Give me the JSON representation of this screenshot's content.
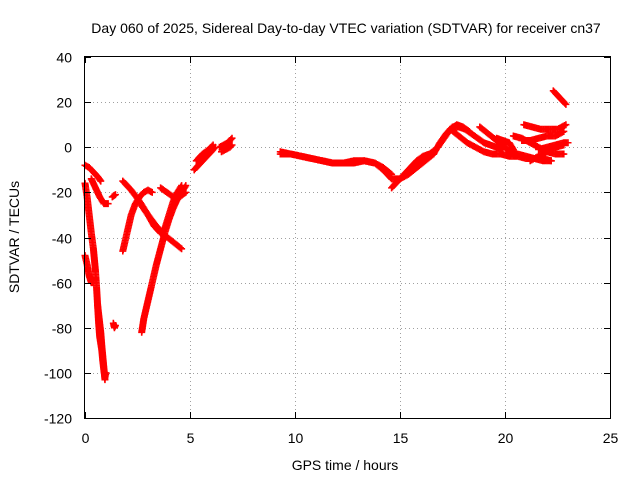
{
  "chart_data": {
    "type": "scatter",
    "title": "Day 060 of 2025, Sidereal Day-to-day VTEC variation (SDTVAR) for receiver cn37",
    "xlabel": "GPS time / hours",
    "ylabel": "SDTVAR / TECUs",
    "xlim": [
      0,
      25
    ],
    "ylim": [
      -120,
      40
    ],
    "xticks": [
      0,
      5,
      10,
      15,
      20,
      25
    ],
    "yticks": [
      -120,
      -100,
      -80,
      -60,
      -40,
      -20,
      0,
      20,
      40
    ],
    "grid": true,
    "legend": "none",
    "marker": "plus",
    "color": "#ff0000",
    "series": [
      {
        "points": [
          [
            0.0,
            -8
          ],
          [
            0.2,
            -9
          ],
          [
            0.4,
            -11
          ],
          [
            0.6,
            -13
          ],
          [
            0.75,
            -15
          ]
        ]
      },
      {
        "points": [
          [
            0.0,
            -16
          ],
          [
            0.1,
            -22
          ],
          [
            0.2,
            -30
          ],
          [
            0.3,
            -38
          ],
          [
            0.4,
            -45
          ],
          [
            0.5,
            -55
          ],
          [
            0.55,
            -62
          ],
          [
            0.6,
            -70
          ],
          [
            0.65,
            -78
          ],
          [
            0.7,
            -84
          ],
          [
            0.8,
            -90
          ],
          [
            0.85,
            -95
          ],
          [
            0.9,
            -99
          ],
          [
            0.95,
            -102
          ],
          [
            1.0,
            -100
          ]
        ]
      },
      {
        "points": [
          [
            0.0,
            -48
          ],
          [
            0.1,
            -52
          ],
          [
            0.2,
            -57
          ],
          [
            0.3,
            -60
          ],
          [
            0.4,
            -60
          ]
        ]
      },
      {
        "points": [
          [
            0.3,
            -14
          ],
          [
            0.5,
            -18
          ],
          [
            0.7,
            -22
          ],
          [
            0.9,
            -25
          ],
          [
            1.1,
            -25
          ]
        ]
      },
      {
        "points": [
          [
            0.6,
            -70
          ],
          [
            0.65,
            -74
          ],
          [
            0.7,
            -78
          ],
          [
            0.75,
            -82
          ],
          [
            0.8,
            -88
          ],
          [
            0.85,
            -93
          ],
          [
            0.9,
            -98
          ],
          [
            0.95,
            -103
          ]
        ]
      },
      {
        "points": [
          [
            1.3,
            -22
          ],
          [
            1.45,
            -21
          ]
        ]
      },
      {
        "points": [
          [
            1.35,
            -78
          ],
          [
            1.4,
            -80
          ],
          [
            1.45,
            -79
          ]
        ]
      },
      {
        "points": [
          [
            1.8,
            -46
          ],
          [
            2.0,
            -38
          ],
          [
            2.2,
            -30
          ],
          [
            2.4,
            -25
          ],
          [
            2.6,
            -22
          ],
          [
            2.8,
            -20
          ],
          [
            3.0,
            -19
          ],
          [
            3.2,
            -20
          ]
        ]
      },
      {
        "points": [
          [
            1.8,
            -15
          ],
          [
            2.2,
            -19
          ],
          [
            2.6,
            -24
          ],
          [
            3.0,
            -30
          ],
          [
            3.4,
            -35
          ],
          [
            3.8,
            -39
          ],
          [
            4.2,
            -42
          ],
          [
            4.6,
            -45
          ]
        ]
      },
      {
        "points": [
          [
            2.7,
            -82
          ],
          [
            2.8,
            -76
          ],
          [
            3.0,
            -68
          ],
          [
            3.2,
            -60
          ],
          [
            3.4,
            -52
          ],
          [
            3.6,
            -45
          ],
          [
            3.8,
            -38
          ],
          [
            4.0,
            -32
          ],
          [
            4.2,
            -27
          ],
          [
            4.4,
            -23
          ],
          [
            4.6,
            -20
          ],
          [
            4.8,
            -17
          ]
        ]
      },
      {
        "points": [
          [
            2.7,
            -26
          ],
          [
            3.0,
            -30
          ],
          [
            3.3,
            -35
          ],
          [
            3.6,
            -38
          ],
          [
            3.8,
            -36
          ],
          [
            4.0,
            -30
          ],
          [
            4.2,
            -24
          ],
          [
            4.4,
            -20
          ],
          [
            4.6,
            -17
          ]
        ]
      },
      {
        "points": [
          [
            3.6,
            -18
          ],
          [
            3.9,
            -20
          ],
          [
            4.2,
            -22
          ],
          [
            4.5,
            -22
          ],
          [
            4.8,
            -20
          ]
        ]
      },
      {
        "points": [
          [
            5.2,
            -10
          ],
          [
            5.5,
            -7
          ],
          [
            5.8,
            -4
          ],
          [
            6.0,
            -2
          ],
          [
            6.2,
            0
          ]
        ]
      },
      {
        "points": [
          [
            5.3,
            -6
          ],
          [
            5.6,
            -3
          ],
          [
            5.9,
            -1
          ],
          [
            6.1,
            1
          ]
        ]
      },
      {
        "points": [
          [
            6.4,
            0
          ],
          [
            6.6,
            1
          ],
          [
            6.8,
            2
          ],
          [
            7.0,
            4
          ]
        ]
      },
      {
        "points": [
          [
            6.5,
            -2
          ],
          [
            6.7,
            -1
          ],
          [
            6.9,
            0
          ],
          [
            7.0,
            1
          ]
        ]
      },
      {
        "points": [
          [
            9.3,
            -3
          ],
          [
            9.8,
            -3
          ],
          [
            10.3,
            -4
          ],
          [
            10.8,
            -5
          ],
          [
            11.3,
            -6
          ],
          [
            11.8,
            -7
          ],
          [
            12.3,
            -7
          ],
          [
            12.8,
            -7
          ],
          [
            13.3,
            -6
          ],
          [
            13.8,
            -7
          ],
          [
            14.2,
            -10
          ],
          [
            14.6,
            -14
          ],
          [
            15.0,
            -14
          ],
          [
            15.4,
            -12
          ],
          [
            15.8,
            -9
          ],
          [
            16.2,
            -6
          ],
          [
            16.6,
            -3
          ]
        ]
      },
      {
        "points": [
          [
            9.3,
            -2
          ],
          [
            9.8,
            -3
          ],
          [
            10.3,
            -4
          ],
          [
            10.8,
            -5
          ],
          [
            11.3,
            -6
          ],
          [
            11.8,
            -7
          ],
          [
            12.3,
            -7
          ],
          [
            12.8,
            -6
          ],
          [
            13.3,
            -6
          ],
          [
            13.8,
            -7
          ],
          [
            14.2,
            -9
          ],
          [
            14.6,
            -12
          ]
        ]
      },
      {
        "points": [
          [
            14.6,
            -18
          ],
          [
            14.9,
            -15
          ],
          [
            15.2,
            -12
          ],
          [
            15.5,
            -9
          ],
          [
            15.8,
            -6
          ],
          [
            16.1,
            -4
          ],
          [
            16.4,
            -3
          ],
          [
            16.7,
            -1
          ]
        ]
      },
      {
        "points": [
          [
            16.6,
            -3
          ],
          [
            16.9,
            2
          ],
          [
            17.2,
            6
          ],
          [
            17.5,
            9
          ],
          [
            17.8,
            9
          ],
          [
            18.1,
            8
          ],
          [
            18.4,
            6
          ],
          [
            18.7,
            4
          ],
          [
            19.0,
            2
          ],
          [
            19.3,
            1
          ],
          [
            19.6,
            0
          ],
          [
            19.9,
            -1
          ]
        ]
      },
      {
        "points": [
          [
            16.8,
            0
          ],
          [
            17.1,
            4
          ],
          [
            17.4,
            8
          ],
          [
            17.7,
            10
          ],
          [
            18.0,
            9
          ],
          [
            18.3,
            7
          ]
        ]
      },
      {
        "points": [
          [
            17.4,
            8
          ],
          [
            17.8,
            5
          ],
          [
            18.2,
            2
          ],
          [
            18.6,
            0
          ],
          [
            19.0,
            -2
          ],
          [
            19.4,
            -3
          ],
          [
            19.8,
            -3
          ],
          [
            20.2,
            -4
          ],
          [
            20.6,
            -4
          ],
          [
            21.0,
            -5
          ],
          [
            21.4,
            -5
          ],
          [
            21.8,
            -6
          ],
          [
            22.2,
            -6
          ]
        ]
      },
      {
        "points": [
          [
            18.8,
            9
          ],
          [
            19.2,
            6
          ],
          [
            19.6,
            3
          ],
          [
            20.0,
            0
          ],
          [
            20.2,
            -2
          ]
        ]
      },
      {
        "points": [
          [
            19.6,
            4
          ],
          [
            19.9,
            3
          ],
          [
            20.2,
            2
          ],
          [
            20.4,
            -1
          ]
        ]
      },
      {
        "points": [
          [
            20.2,
            -2
          ],
          [
            20.6,
            -3
          ],
          [
            21.0,
            -4
          ],
          [
            21.4,
            -5
          ],
          [
            21.8,
            -5
          ],
          [
            22.2,
            -6
          ]
        ]
      },
      {
        "points": [
          [
            20.4,
            5
          ],
          [
            20.8,
            4
          ],
          [
            21.2,
            2
          ],
          [
            21.6,
            0
          ],
          [
            22.0,
            -2
          ],
          [
            22.4,
            -3
          ],
          [
            22.8,
            -3
          ]
        ]
      },
      {
        "points": [
          [
            21.2,
            -6
          ],
          [
            21.6,
            -4
          ],
          [
            22.0,
            -2
          ],
          [
            22.4,
            0
          ],
          [
            22.8,
            1
          ]
        ]
      },
      {
        "points": [
          [
            20.9,
            10
          ],
          [
            21.3,
            9
          ],
          [
            21.7,
            8
          ],
          [
            22.1,
            8
          ],
          [
            22.5,
            8
          ],
          [
            22.9,
            10
          ]
        ]
      },
      {
        "points": [
          [
            20.8,
            3
          ],
          [
            21.2,
            3
          ],
          [
            21.6,
            4
          ],
          [
            22.0,
            5
          ],
          [
            22.4,
            5
          ],
          [
            22.8,
            7
          ]
        ]
      },
      {
        "points": [
          [
            21.6,
            -1
          ],
          [
            22.0,
            0
          ],
          [
            22.4,
            1
          ],
          [
            22.8,
            2
          ],
          [
            23.0,
            2
          ]
        ]
      },
      {
        "points": [
          [
            22.3,
            25
          ],
          [
            22.5,
            23
          ],
          [
            22.7,
            21
          ],
          [
            22.9,
            19
          ]
        ]
      }
    ]
  }
}
